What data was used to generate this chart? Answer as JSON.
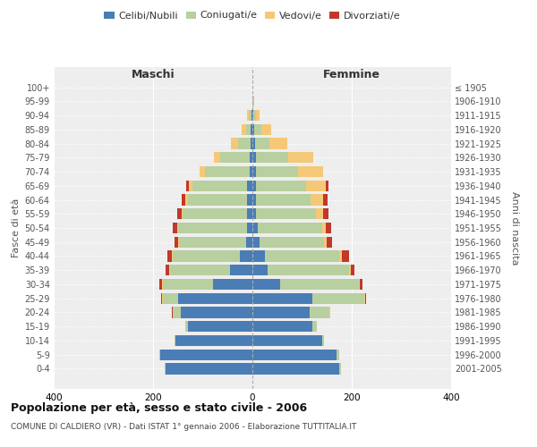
{
  "age_groups": [
    "0-4",
    "5-9",
    "10-14",
    "15-19",
    "20-24",
    "25-29",
    "30-34",
    "35-39",
    "40-44",
    "45-49",
    "50-54",
    "55-59",
    "60-64",
    "65-69",
    "70-74",
    "75-79",
    "80-84",
    "85-89",
    "90-94",
    "95-99",
    "100+"
  ],
  "birth_years": [
    "2001-2005",
    "1996-2000",
    "1991-1995",
    "1986-1990",
    "1981-1985",
    "1976-1980",
    "1971-1975",
    "1966-1970",
    "1961-1965",
    "1956-1960",
    "1951-1955",
    "1946-1950",
    "1941-1945",
    "1936-1940",
    "1931-1935",
    "1926-1930",
    "1921-1925",
    "1916-1920",
    "1911-1915",
    "1906-1910",
    "≤ 1905"
  ],
  "male": {
    "celibe": [
      175,
      185,
      155,
      130,
      145,
      150,
      80,
      45,
      25,
      12,
      10,
      10,
      10,
      10,
      5,
      5,
      3,
      3,
      2,
      0,
      0
    ],
    "coniugato": [
      2,
      2,
      2,
      5,
      15,
      30,
      100,
      120,
      135,
      135,
      140,
      130,
      120,
      110,
      90,
      60,
      25,
      10,
      5,
      0,
      0
    ],
    "vedovo": [
      0,
      0,
      0,
      0,
      1,
      2,
      2,
      2,
      2,
      2,
      2,
      3,
      5,
      8,
      12,
      12,
      15,
      8,
      3,
      0,
      0
    ],
    "divorziato": [
      0,
      0,
      0,
      0,
      1,
      2,
      5,
      8,
      10,
      8,
      8,
      8,
      8,
      5,
      0,
      0,
      0,
      0,
      0,
      0,
      0
    ]
  },
  "female": {
    "nubile": [
      175,
      170,
      140,
      120,
      115,
      120,
      55,
      30,
      25,
      15,
      10,
      8,
      8,
      8,
      7,
      7,
      5,
      3,
      2,
      0,
      0
    ],
    "coniugata": [
      3,
      5,
      5,
      10,
      40,
      105,
      160,
      165,
      150,
      130,
      130,
      120,
      110,
      100,
      85,
      65,
      30,
      15,
      5,
      2,
      0
    ],
    "vedova": [
      0,
      0,
      0,
      0,
      1,
      2,
      2,
      3,
      5,
      5,
      8,
      15,
      25,
      40,
      50,
      50,
      35,
      20,
      8,
      2,
      0
    ],
    "divorziata": [
      0,
      0,
      0,
      0,
      1,
      2,
      5,
      8,
      15,
      10,
      10,
      10,
      8,
      5,
      0,
      0,
      0,
      0,
      0,
      0,
      0
    ]
  },
  "colors": {
    "celibe": "#4a7db5",
    "coniugato": "#b8cfa0",
    "vedovo": "#f5c878",
    "divorziato": "#c0392b"
  },
  "legend_labels": [
    "Celibi/Nubili",
    "Coniugati/e",
    "Vedovi/e",
    "Divorziati/e"
  ],
  "title": "Popolazione per età, sesso e stato civile - 2006",
  "subtitle": "COMUNE DI CALDIERO (VR) - Dati ISTAT 1° gennaio 2006 - Elaborazione TUTTITALIA.IT",
  "label_maschi": "Maschi",
  "label_femmine": "Femmine",
  "ylabel_left": "Fasce di età",
  "ylabel_right": "Anni di nascita",
  "xlim": 400,
  "bg_color": "#ffffff",
  "plot_bg_color": "#eeeeee"
}
